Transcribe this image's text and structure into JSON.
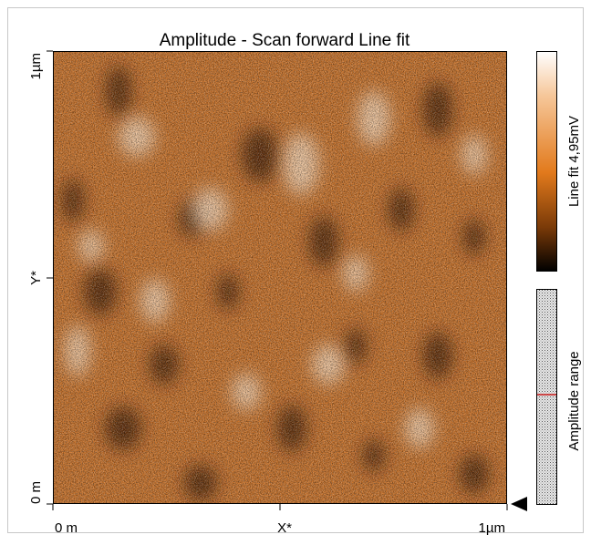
{
  "title": "Amplitude - Scan forward   Line fit",
  "x_axis": {
    "start": "0 m",
    "label": "X*",
    "end": "1µm"
  },
  "y_axis": {
    "start": "0 m",
    "label": "Y*",
    "end": "1µm"
  },
  "colorbar": {
    "label": "Line fit 4,95mV"
  },
  "range_bar": {
    "label": "Amplitude range"
  }
}
